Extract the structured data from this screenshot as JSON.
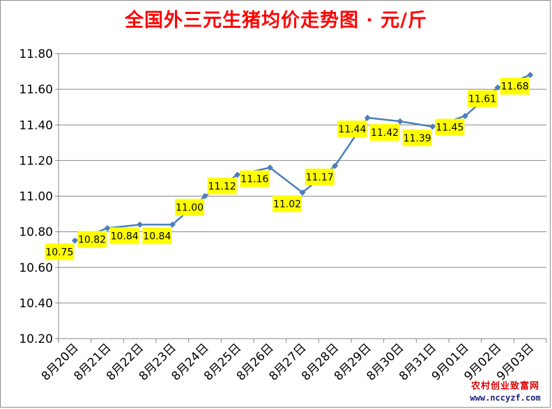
{
  "chart_data": {
    "type": "line",
    "title": "全国外三元生猪均价走势图 · 元/斤",
    "categories": [
      "8月20日",
      "8月21日",
      "8月22日",
      "8月23日",
      "8月24日",
      "8月25日",
      "8月26日",
      "8月27日",
      "8月28日",
      "8月29日",
      "8月30日",
      "8月31日",
      "9月01日",
      "9月02日",
      "9月03日"
    ],
    "series": [
      {
        "values": [
          10.75,
          10.82,
          10.84,
          10.84,
          11.0,
          11.12,
          11.16,
          11.02,
          11.17,
          11.44,
          11.42,
          11.39,
          11.45,
          11.61,
          11.68
        ]
      }
    ],
    "data_labels": [
      "10.75",
      "10.82",
      "10.84",
      "10.84",
      "11.00",
      "11.12",
      "11.16",
      "11.02",
      "11.17",
      "11.44",
      "11.42",
      "11.39",
      "11.45",
      "11.61",
      "11.68"
    ],
    "y_ticks": [
      "10.20",
      "10.40",
      "10.60",
      "10.80",
      "11.00",
      "11.20",
      "11.40",
      "11.60",
      "11.80"
    ],
    "ylim": [
      10.2,
      11.8
    ],
    "grid": true,
    "colors": {
      "line": "#4a7ebb",
      "label_bg": "#ffff00",
      "title": "#ff0000"
    }
  },
  "watermark": {
    "name": "农村创业致富网",
    "url": "www.nccyzf.com"
  }
}
